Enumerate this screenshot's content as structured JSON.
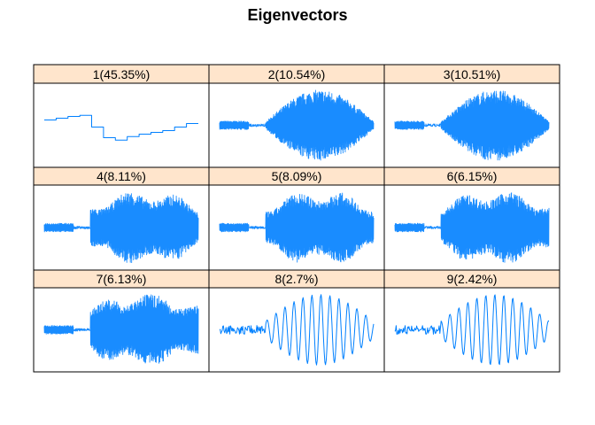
{
  "title": "Eigenvectors",
  "colors": {
    "line": "#0080ff",
    "strip": "#ffe5cc",
    "border": "#000000"
  },
  "chart_data": {
    "type": "line",
    "title": "Eigenvectors",
    "xlabel": "",
    "ylabel": "",
    "layout": "3x3 lattice of panels, no axes",
    "panels": [
      {
        "label": "1(45.35%)",
        "pattern": "steps"
      },
      {
        "label": "2(10.54%)",
        "pattern": "fast-burst"
      },
      {
        "label": "3(10.51%)",
        "pattern": "fast-burst"
      },
      {
        "label": "4(8.11%)",
        "pattern": "fast-burst"
      },
      {
        "label": "5(8.09%)",
        "pattern": "fast-burst"
      },
      {
        "label": "6(6.15%)",
        "pattern": "fast-burst"
      },
      {
        "label": "7(6.13%)",
        "pattern": "fast-burst"
      },
      {
        "label": "8(2.7%)",
        "pattern": "slow-oscillation"
      },
      {
        "label": "9(2.42%)",
        "pattern": "slow-oscillation"
      }
    ]
  }
}
